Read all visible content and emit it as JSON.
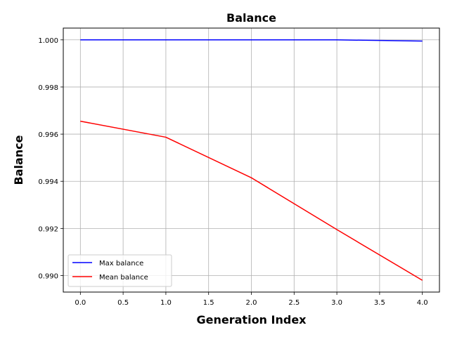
{
  "chart_data": {
    "type": "line",
    "title": "Balance",
    "xlabel": "Generation Index",
    "ylabel": "Balance",
    "x": [
      0,
      1,
      2,
      3,
      4
    ],
    "xlim": [
      -0.2,
      4.2
    ],
    "ylim": [
      0.9893,
      1.0005
    ],
    "xticks": [
      0.0,
      0.5,
      1.0,
      1.5,
      2.0,
      2.5,
      3.0,
      3.5,
      4.0
    ],
    "xtick_labels": [
      "0.0",
      "0.5",
      "1.0",
      "1.5",
      "2.0",
      "2.5",
      "3.0",
      "3.5",
      "4.0"
    ],
    "yticks": [
      0.99,
      0.992,
      0.994,
      0.996,
      0.998,
      1.0
    ],
    "ytick_labels": [
      "0.990",
      "0.992",
      "0.994",
      "0.996",
      "0.998",
      "1.000"
    ],
    "grid": true,
    "legend_position": "lower-left",
    "series": [
      {
        "name": "Max balance",
        "color": "#0000ff",
        "values": [
          1.0,
          1.0,
          1.0,
          1.0,
          0.99995
        ]
      },
      {
        "name": "Mean balance",
        "color": "#ff0000",
        "values": [
          0.99655,
          0.99587,
          0.99415,
          0.99195,
          0.9898
        ]
      }
    ]
  }
}
